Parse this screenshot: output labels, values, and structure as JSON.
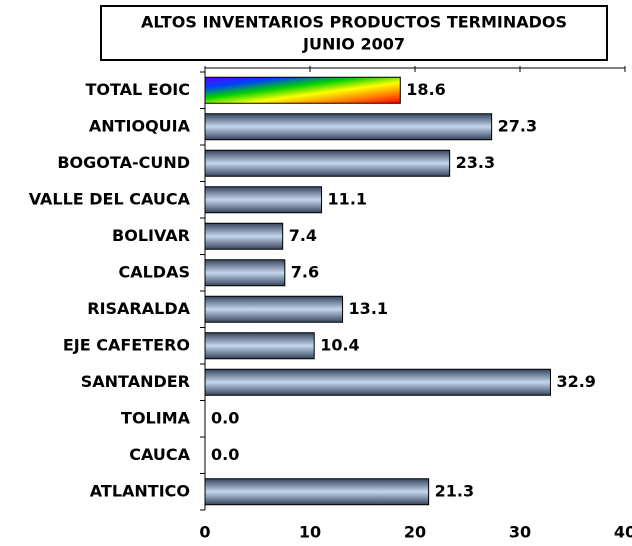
{
  "chart_data": {
    "type": "barh",
    "title": [
      "ALTOS INVENTARIOS PRODUCTOS TERMINADOS",
      "JUNIO 2007"
    ],
    "categories": [
      "TOTAL EOIC",
      "ANTIOQUIA",
      "BOGOTA-CUND",
      "VALLE DEL CAUCA",
      "BOLIVAR",
      "CALDAS",
      "RISARALDA",
      "EJE CAFETERO",
      "SANTANDER",
      "TOLIMA",
      "CAUCA",
      "ATLANTICO"
    ],
    "values": [
      18.6,
      27.3,
      23.3,
      11.1,
      7.4,
      7.6,
      13.1,
      10.4,
      32.9,
      0,
      0,
      21.3
    ],
    "value_labels": [
      "18.6",
      "27.3",
      "23.3",
      "11.1",
      "7.4",
      "7.6",
      "13.1",
      "10.4",
      "32.9",
      "0.0",
      "0.0",
      "21.3"
    ],
    "bar_gradient": [
      "#34445c",
      "#c4d6ee",
      "#34445c"
    ],
    "first_bar_gradient": [
      "#6000ff",
      "#0040ff",
      "#00d000",
      "#ffff00",
      "#ff8000",
      "#ff0000"
    ],
    "xlim": [
      0,
      40
    ],
    "xticks": [
      0,
      10,
      20,
      30,
      40
    ]
  }
}
